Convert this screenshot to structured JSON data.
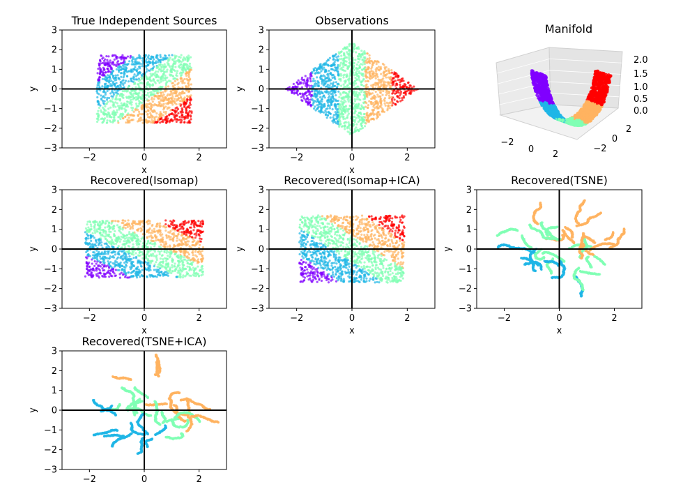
{
  "colors": {
    "purple": "#8000ff",
    "blue": "#1fb6e6",
    "mint": "#80ffb4",
    "orange": "#ffb360",
    "red": "#ff0000"
  },
  "chart_data": [
    {
      "type": "scatter",
      "title": "True Independent Sources",
      "xlabel": "x",
      "ylabel": "y",
      "xlim": [
        -3,
        3
      ],
      "ylim": [
        -3,
        3
      ],
      "xticks": [
        "−2",
        "0",
        "2"
      ],
      "yticks": [
        "−3",
        "−2",
        "−1",
        "0",
        "1",
        "2",
        "3"
      ],
      "shape": "rectangle",
      "extent": [
        -1.73,
        1.73,
        -1.73,
        1.73
      ],
      "bands": "diagonal-up"
    },
    {
      "type": "scatter",
      "title": "Observations",
      "xlabel": "x",
      "ylabel": "y",
      "xlim": [
        -3,
        3
      ],
      "ylim": [
        -3,
        3
      ],
      "xticks": [
        "−2",
        "0",
        "2"
      ],
      "yticks": [
        "−3",
        "−2",
        "−1",
        "0",
        "1",
        "2",
        "3"
      ],
      "shape": "diamond",
      "extent": [
        -2.4,
        2.4,
        -2.4,
        2.4
      ],
      "bands": "vertical"
    },
    {
      "type": "scatter3d",
      "title": "Manifold",
      "xticks": [
        "−2",
        "0",
        "2"
      ],
      "yticks": [
        "−2",
        "0",
        "2"
      ],
      "zticks": [
        "0.0",
        "0.5",
        "1.0",
        "1.5",
        "2.0"
      ]
    },
    {
      "type": "scatter",
      "title": "Recovered(Isomap)",
      "xlabel": "x",
      "ylabel": "y",
      "xlim": [
        -3,
        3
      ],
      "ylim": [
        -3,
        3
      ],
      "xticks": [
        "−2",
        "0",
        "2"
      ],
      "yticks": [
        "−3",
        "−2",
        "−1",
        "0",
        "1",
        "2",
        "3"
      ],
      "shape": "rectangle",
      "extent": [
        -2.15,
        2.15,
        -1.45,
        1.45
      ],
      "bands": "diagonal-down"
    },
    {
      "type": "scatter",
      "title": "Recovered(Isomap+ICA)",
      "xlabel": "x",
      "ylabel": "y",
      "xlim": [
        -3,
        3
      ],
      "ylim": [
        -3,
        3
      ],
      "xticks": [
        "−2",
        "0",
        "2"
      ],
      "yticks": [
        "−3",
        "−2",
        "−1",
        "0",
        "1",
        "2",
        "3"
      ],
      "shape": "rectangle",
      "extent": [
        -1.9,
        1.9,
        -1.7,
        1.7
      ],
      "bands": "diagonal-down"
    },
    {
      "type": "scatter",
      "title": "Recovered(TSNE)",
      "xlabel": "x",
      "ylabel": "y",
      "xlim": [
        -3,
        3
      ],
      "ylim": [
        -3,
        3
      ],
      "xticks": [
        "−2",
        "0",
        "2"
      ],
      "yticks": [
        "−3",
        "−2",
        "−1",
        "0",
        "1",
        "2",
        "3"
      ],
      "shape": "blob",
      "extent": [
        -2.1,
        2.1,
        -1.6,
        1.6
      ],
      "bands": "clusters"
    },
    {
      "type": "scatter",
      "title": "Recovered(TSNE+ICA)",
      "xlabel": "x",
      "ylabel": "y",
      "xlim": [
        -3,
        3
      ],
      "ylim": [
        -3,
        3
      ],
      "xticks": [
        "−2",
        "0",
        "2"
      ],
      "yticks": [
        "−3",
        "−2",
        "−1",
        "0",
        "1",
        "2",
        "3"
      ],
      "shape": "blob",
      "extent": [
        -1.9,
        1.9,
        -1.9,
        1.9
      ],
      "bands": "clusters"
    }
  ]
}
